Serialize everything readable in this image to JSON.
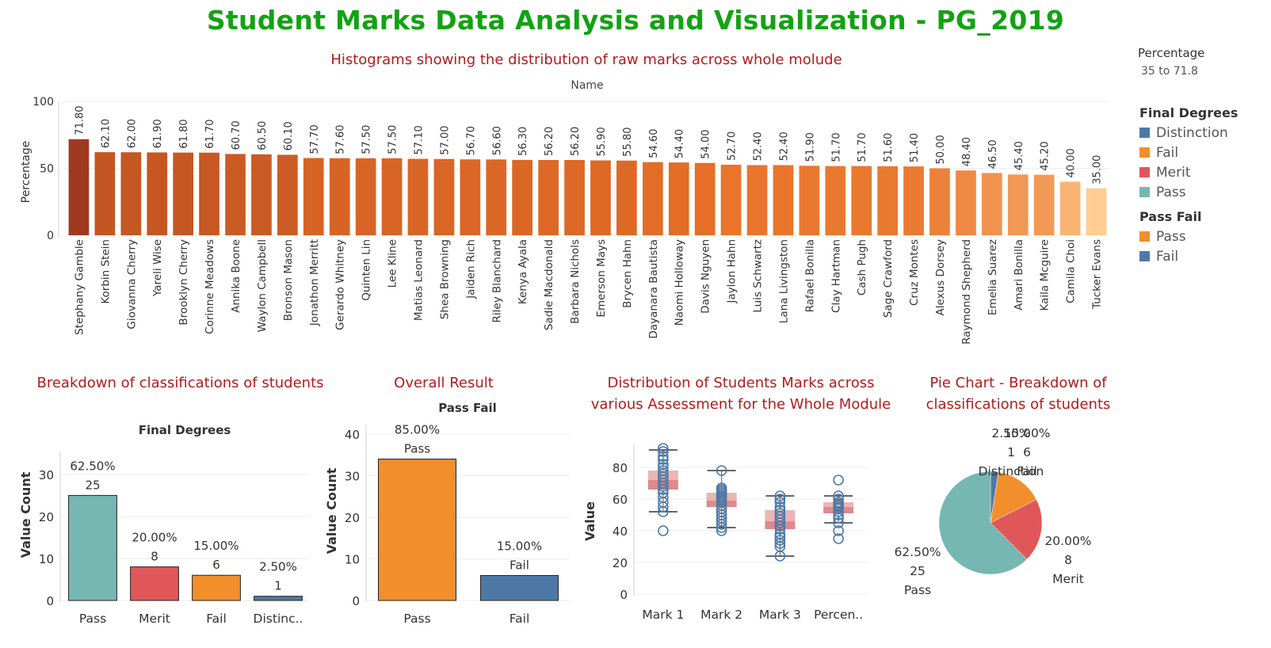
{
  "main_title": "Student Marks Data Analysis and Visualization - PG_2019",
  "percentage_legend": {
    "title": "Percentage",
    "range": "35 to 71.8"
  },
  "final_degrees_legend": {
    "title": "Final Degrees",
    "items": [
      {
        "label": "Distinction",
        "color": "#4e79a7"
      },
      {
        "label": "Fail",
        "color": "#f28e2b"
      },
      {
        "label": "Merit",
        "color": "#e15759"
      },
      {
        "label": "Pass",
        "color": "#76b7b2"
      }
    ]
  },
  "pass_fail_legend": {
    "title": "Pass Fail",
    "items": [
      {
        "label": "Pass",
        "color": "#f28e2b"
      },
      {
        "label": "Fail",
        "color": "#4e79a7"
      }
    ]
  },
  "chart_data": [
    {
      "id": "histogram",
      "type": "bar",
      "title": "Histograms showing the distribution of raw marks across whole molude",
      "xlabel": "Name",
      "ylabel": "Percentage",
      "ylim": [
        0,
        100
      ],
      "yticks": [
        0,
        50,
        100
      ],
      "categories": [
        "Stephany Gamble",
        "Korbin Stein",
        "Giovanna Cherry",
        "Yareli Wise",
        "Brooklyn Cherry",
        "Corinne Meadows",
        "Annika Boone",
        "Waylon Campbell",
        "Bronson Mason",
        "Jonathon Merritt",
        "Gerardo Whitney",
        "Quinten Lin",
        "Lee Kline",
        "Matias Leonard",
        "Shea Browning",
        "Jaiden Rich",
        "Riley Blanchard",
        "Kenya Ayala",
        "Sadie Macdonald",
        "Barbara Nichols",
        "Emerson Mays",
        "Brycen Hahn",
        "Dayanara Bautista",
        "Naomi Holloway",
        "Davis Nguyen",
        "Jaylon Hahn",
        "Luis Schwartz",
        "Lana Livingston",
        "Rafael Bonilla",
        "Clay Hartman",
        "Cash Pugh",
        "Sage Crawford",
        "Cruz Montes",
        "Alexus Dorsey",
        "Raymond Shepherd",
        "Emelia Suarez",
        "Amari Bonilla",
        "Kaila Mcguire",
        "Camila Choi",
        "Tucker Evans"
      ],
      "values": [
        71.8,
        62.1,
        62.0,
        61.9,
        61.8,
        61.7,
        60.7,
        60.5,
        60.1,
        57.7,
        57.6,
        57.5,
        57.5,
        57.1,
        57.0,
        56.7,
        56.6,
        56.3,
        56.2,
        56.2,
        55.9,
        55.8,
        54.6,
        54.4,
        54.0,
        52.7,
        52.4,
        52.4,
        51.9,
        51.7,
        51.7,
        51.6,
        51.4,
        50.0,
        48.4,
        46.5,
        45.4,
        45.2,
        40.0,
        35.0
      ],
      "labels": [
        "71.80",
        "62.10",
        "62.00",
        "61.90",
        "61.80",
        "61.70",
        "60.70",
        "60.50",
        "60.10",
        "57.70",
        "57.60",
        "57.50",
        "57.50",
        "57.10",
        "57.00",
        "56.70",
        "56.60",
        "56.30",
        "56.20",
        "56.20",
        "55.90",
        "55.80",
        "54.60",
        "54.40",
        "54.00",
        "52.70",
        "52.40",
        "52.40",
        "51.90",
        "51.70",
        "51.70",
        "51.60",
        "51.40",
        "50.00",
        "48.40",
        "46.50",
        "45.40",
        "45.20",
        "40.00",
        "35.00"
      ],
      "color_scale": "Percentage (orange-brown, 35 to 71.8)"
    },
    {
      "id": "final-degrees",
      "type": "bar",
      "title": "Breakdown of classifications of students",
      "xlabel": "Final Degrees",
      "ylabel": "Value Count",
      "ylim": [
        0,
        33
      ],
      "yticks": [
        0,
        10,
        20,
        30
      ],
      "categories": [
        "Pass",
        "Merit",
        "Fail",
        "Distinc.."
      ],
      "values": [
        25,
        8,
        6,
        1
      ],
      "percent_labels": [
        "62.50%",
        "20.00%",
        "15.00%",
        "2.50%"
      ],
      "colors": [
        "#76b7b2",
        "#e15759",
        "#f28e2b",
        "#4e79a7"
      ]
    },
    {
      "id": "overall-result",
      "type": "bar",
      "title": "Overall Result",
      "xlabel": "Pass Fail",
      "ylabel": "Value Count",
      "ylim": [
        0,
        40
      ],
      "yticks": [
        0,
        10,
        20,
        30,
        40
      ],
      "categories": [
        "Pass",
        "Fail"
      ],
      "values": [
        34,
        6
      ],
      "percent_labels": [
        "85.00%",
        "15.00%"
      ],
      "colors": [
        "#f28e2b",
        "#4e79a7"
      ]
    },
    {
      "id": "assessment-boxplot",
      "type": "box",
      "title": "Distribution of Students Marks across various Assessment for the Whole Module",
      "ylabel": "Value",
      "ylim": [
        0,
        95
      ],
      "yticks": [
        0,
        20,
        40,
        60,
        80
      ],
      "categories": [
        "Mark 1",
        "Mark 2",
        "Mark 3",
        "Percen.."
      ],
      "boxes": [
        {
          "min": 52,
          "q1": 66,
          "median": 72,
          "q3": 78,
          "max": 91,
          "points": [
            92,
            90,
            87,
            85,
            82,
            80,
            78,
            76,
            74,
            72,
            70,
            68,
            66,
            64,
            61,
            58,
            55,
            52,
            40
          ]
        },
        {
          "min": 42,
          "q1": 55,
          "median": 59,
          "q3": 64,
          "max": 78,
          "points": [
            78,
            67,
            66,
            65,
            64,
            63,
            62,
            61,
            60,
            59,
            58,
            56,
            54,
            52,
            50,
            48,
            46,
            44,
            42,
            40
          ]
        },
        {
          "min": 24,
          "q1": 41,
          "median": 46,
          "q3": 53,
          "max": 62,
          "points": [
            62,
            60,
            58,
            55,
            53,
            51,
            49,
            47,
            45,
            43,
            41,
            38,
            36,
            34,
            32,
            30,
            24
          ]
        },
        {
          "min": 45,
          "q1": 51,
          "median": 55,
          "q3": 58,
          "max": 62,
          "points": [
            72,
            62,
            60,
            58,
            57,
            56,
            55,
            54,
            52,
            50,
            48,
            45,
            40,
            35
          ]
        }
      ]
    },
    {
      "id": "pie",
      "type": "pie",
      "title": "Pie Chart - Breakdown of classifications of students",
      "slices": [
        {
          "name": "Distinction",
          "value": 1,
          "percent": "2.50%",
          "color": "#4e79a7"
        },
        {
          "name": "Fail",
          "value": 6,
          "percent": "15.00%",
          "color": "#f28e2b"
        },
        {
          "name": "Merit",
          "value": 8,
          "percent": "20.00%",
          "color": "#e15759"
        },
        {
          "name": "Pass",
          "value": 25,
          "percent": "62.50%",
          "color": "#76b7b2"
        }
      ]
    }
  ]
}
